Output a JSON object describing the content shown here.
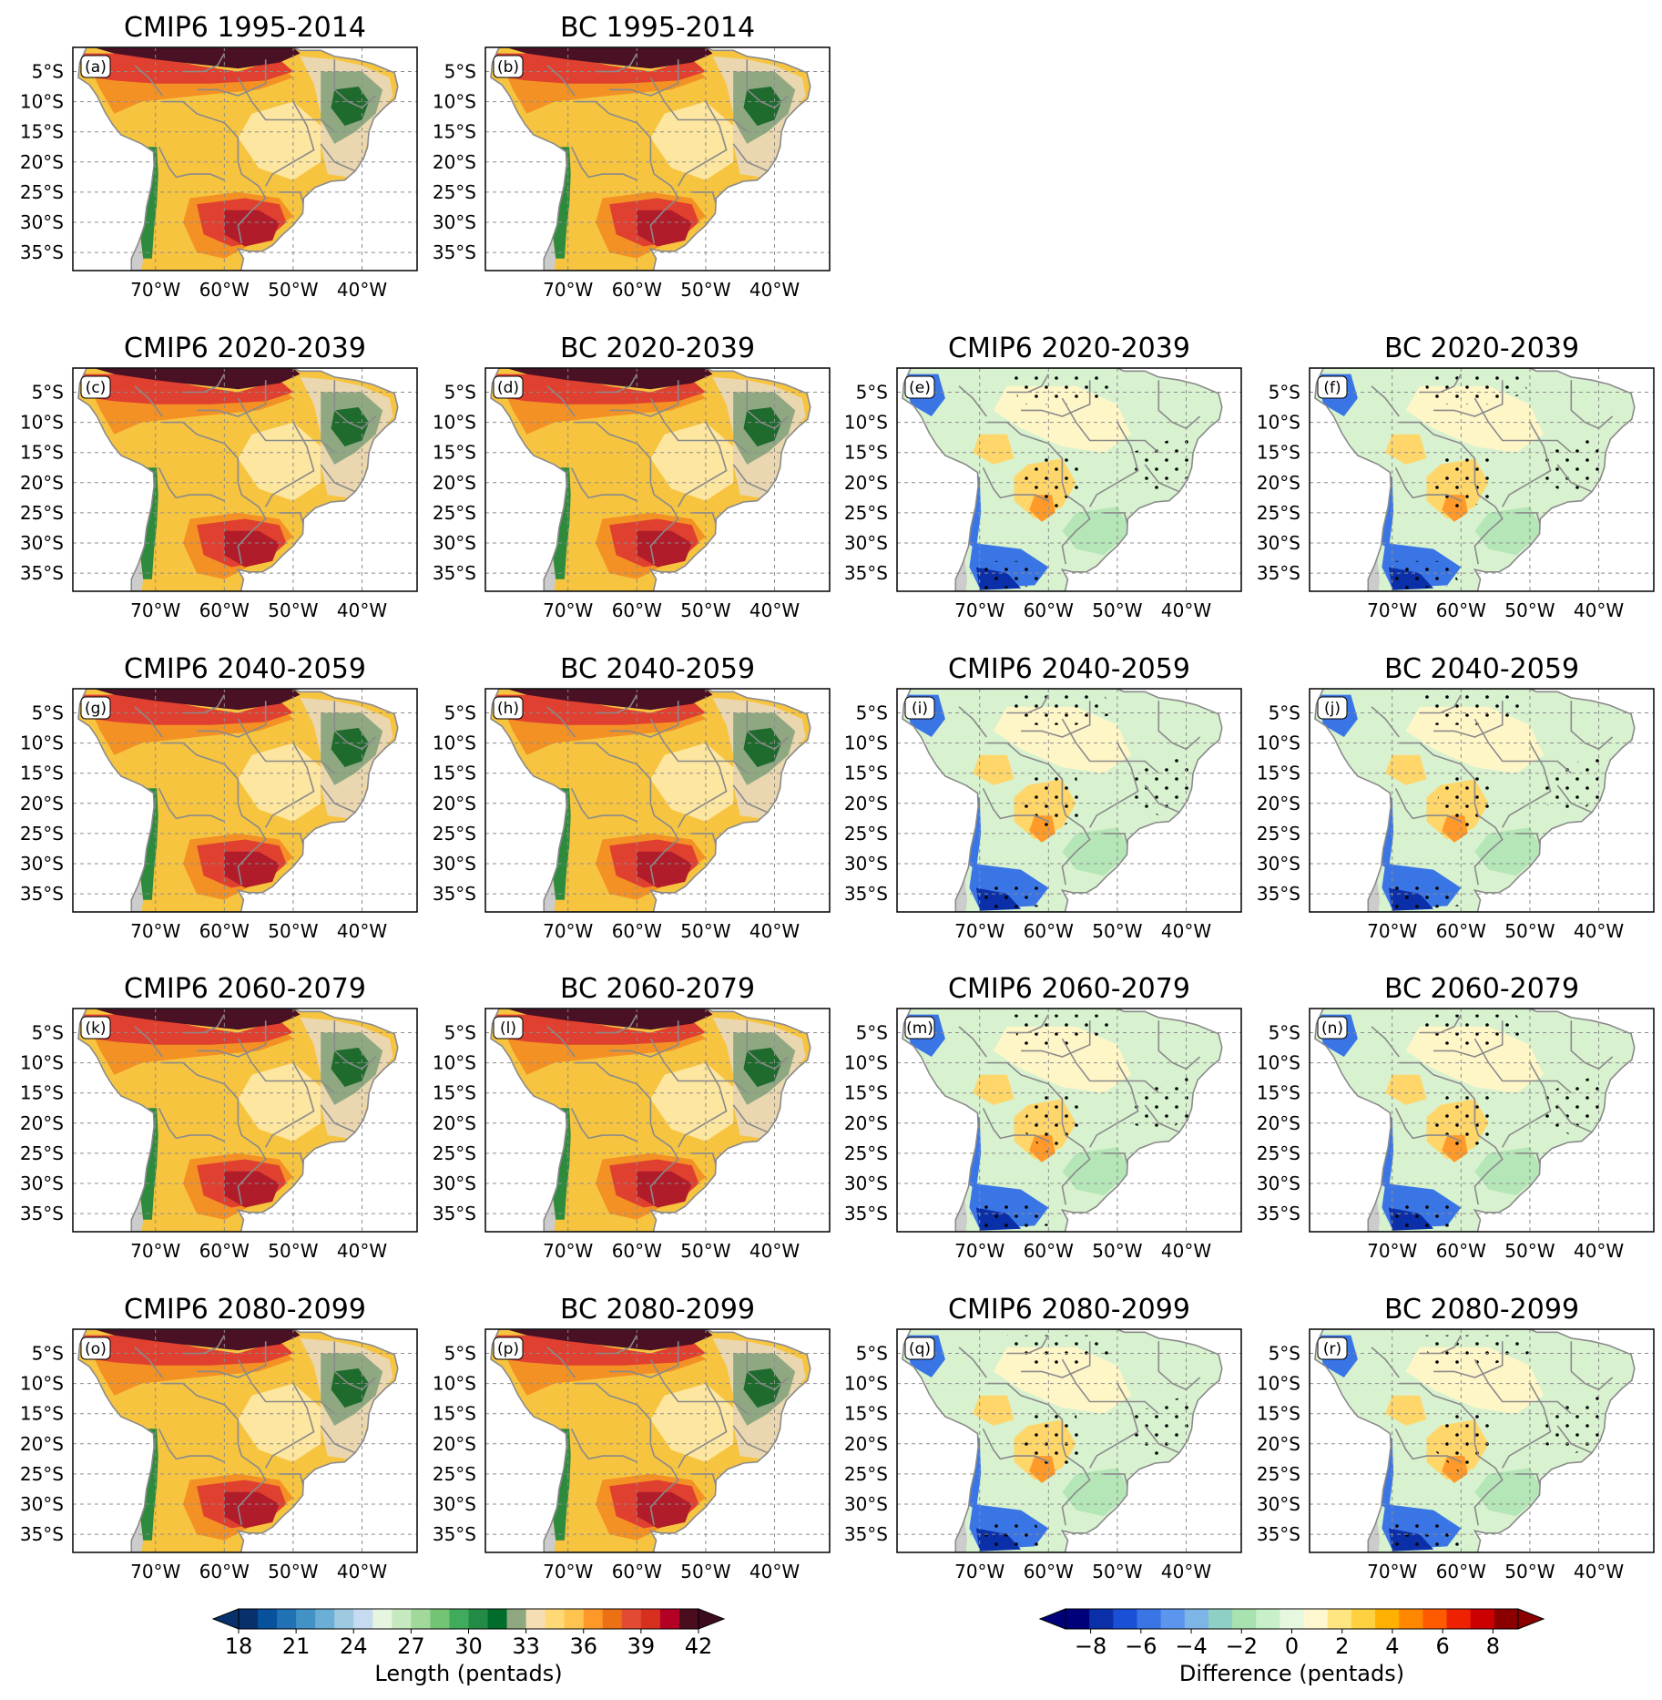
{
  "figure": {
    "lat_ticks": [
      "5°S",
      "10°S",
      "15°S",
      "20°S",
      "25°S",
      "30°S",
      "35°S"
    ],
    "lon_ticks": [
      "70°W",
      "60°W",
      "50°W",
      "40°W"
    ],
    "rows": [
      {
        "period": "1995-2014",
        "panels": [
          {
            "title": "CMIP6 1995-2014",
            "label": "(a)",
            "kind": "length"
          },
          {
            "title": "BC 1995-2014",
            "label": "(b)",
            "kind": "length"
          }
        ]
      },
      {
        "period": "2020-2039",
        "panels": [
          {
            "title": "CMIP6 2020-2039",
            "label": "(c)",
            "kind": "length"
          },
          {
            "title": "BC 2020-2039",
            "label": "(d)",
            "kind": "length"
          },
          {
            "title": "CMIP6 2020-2039",
            "label": "(e)",
            "kind": "difference"
          },
          {
            "title": "BC 2020-2039",
            "label": "(f)",
            "kind": "difference"
          }
        ]
      },
      {
        "period": "2040-2059",
        "panels": [
          {
            "title": "CMIP6 2040-2059",
            "label": "(g)",
            "kind": "length"
          },
          {
            "title": "BC 2040-2059",
            "label": "(h)",
            "kind": "length"
          },
          {
            "title": "CMIP6 2040-2059",
            "label": "(i)",
            "kind": "difference"
          },
          {
            "title": "BC 2040-2059",
            "label": "(j)",
            "kind": "difference"
          }
        ]
      },
      {
        "period": "2060-2079",
        "panels": [
          {
            "title": "CMIP6 2060-2079",
            "label": "(k)",
            "kind": "length"
          },
          {
            "title": "BC 2060-2079",
            "label": "(l)",
            "kind": "length"
          },
          {
            "title": "CMIP6 2060-2079",
            "label": "(m)",
            "kind": "difference"
          },
          {
            "title": "BC 2060-2079",
            "label": "(n)",
            "kind": "difference"
          }
        ]
      },
      {
        "period": "2080-2099",
        "panels": [
          {
            "title": "CMIP6 2080-2099",
            "label": "(o)",
            "kind": "length"
          },
          {
            "title": "BC 2080-2099",
            "label": "(p)",
            "kind": "length"
          },
          {
            "title": "CMIP6 2080-2099",
            "label": "(q)",
            "kind": "difference"
          },
          {
            "title": "BC 2080-2099",
            "label": "(r)",
            "kind": "difference"
          }
        ]
      }
    ]
  },
  "colorbars": {
    "length": {
      "label": "Length (pentads)",
      "tick_labels": [
        "18",
        "21",
        "24",
        "27",
        "30",
        "33",
        "36",
        "39",
        "42"
      ],
      "range": [
        18,
        42
      ],
      "extend": "both",
      "colors": [
        "#08306b",
        "#08519c",
        "#2171b5",
        "#4292c6",
        "#6baed6",
        "#9ecae1",
        "#c6dbef",
        "#e5f5e0",
        "#c7e9c0",
        "#a1d99b",
        "#74c476",
        "#41ab5d",
        "#238b45",
        "#006d2c",
        "#8fa882",
        "#f5deb3",
        "#fed976",
        "#fec44f",
        "#fe9929",
        "#ec7014",
        "#e34a33",
        "#d7301f",
        "#b30024",
        "#4a0d1e"
      ]
    },
    "difference": {
      "label": "Difference (pentads)",
      "tick_labels": [
        "−8",
        "−6",
        "−4",
        "−2",
        "0",
        "2",
        "4",
        "6",
        "8"
      ],
      "range": [
        -9,
        9
      ],
      "extend": "both",
      "colors": [
        "#00007a",
        "#0a2fa8",
        "#1a50d6",
        "#3a75e6",
        "#5b95ee",
        "#7db5e6",
        "#8fd0c4",
        "#a8e2b0",
        "#c8f0c8",
        "#e6f8e0",
        "#fff7d0",
        "#ffe680",
        "#ffd040",
        "#ffb000",
        "#ff8800",
        "#ff5a00",
        "#ee2200",
        "#cc0000",
        "#8a0000"
      ]
    },
    "outside_color": "#3b0a1e"
  },
  "map_palette": {
    "amazon": "#4a1024",
    "dark_red": "#b01c2a",
    "red": "#e0402f",
    "orange": "#f39125",
    "yellow": "#f7c440",
    "light_yellow": "#fde6a0",
    "tan": "#ead7b0",
    "sage": "#8fa882",
    "green": "#3f8f46",
    "dark_green": "#1f6b2e",
    "andes_green": "#2e8b3e",
    "ocean": "#ffffff",
    "land_outside": "#cccccc",
    "border": "#8a8a8a",
    "diff_blue": "#3a75e6",
    "diff_dark_blue": "#0a2fa8",
    "diff_light_green": "#b5e6b8",
    "diff_mint": "#d8f2d0",
    "diff_cream": "#fff6c8",
    "diff_yellow": "#ffd66a",
    "diff_orange": "#ff9a2a"
  }
}
